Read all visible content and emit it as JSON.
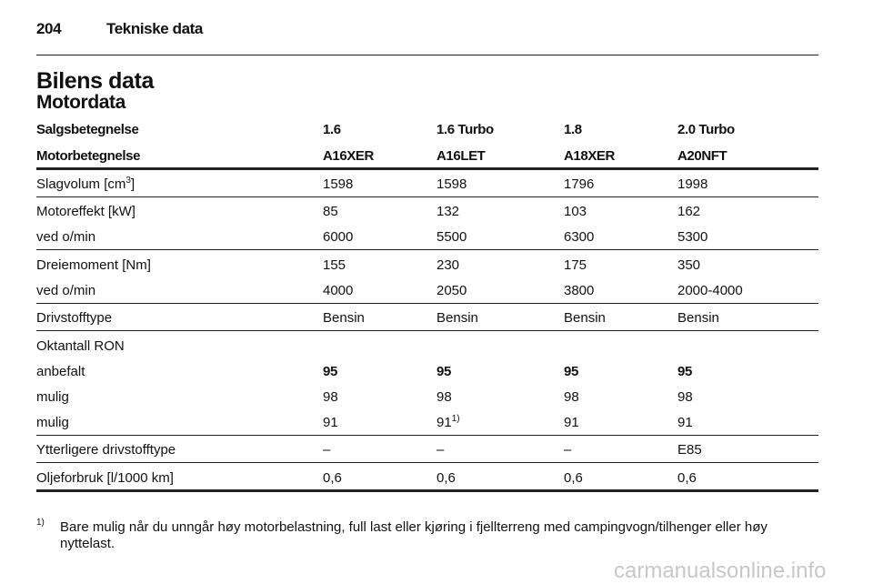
{
  "header": {
    "page_number": "204",
    "section": "Tekniske data"
  },
  "title": "Bilens data",
  "subtitle": "Motordata",
  "table": {
    "header_rows": [
      [
        "Salgsbetegnelse",
        "1.6",
        "1.6 Turbo",
        "1.8",
        "2.0 Turbo"
      ],
      [
        "Motorbetegnelse",
        "A16XER",
        "A16LET",
        "A18XER",
        "A20NFT"
      ]
    ],
    "groups": [
      {
        "rows": [
          [
            {
              "text": "Slagvolum [cm",
              "sup": "3",
              "after": "]"
            },
            "1598",
            "1598",
            "1796",
            "1998"
          ]
        ]
      },
      {
        "rows": [
          [
            "Motoreffekt [kW]",
            "85",
            "132",
            "103",
            "162"
          ],
          [
            "ved o/min",
            "6000",
            "5500",
            "6300",
            "5300"
          ]
        ]
      },
      {
        "rows": [
          [
            "Dreiemoment [Nm]",
            "155",
            "230",
            "175",
            "350"
          ],
          [
            "ved o/min",
            "4000",
            "2050",
            "3800",
            "2000-4000"
          ]
        ]
      },
      {
        "rows": [
          [
            "Drivstofftype",
            "Bensin",
            "Bensin",
            "Bensin",
            "Bensin"
          ]
        ]
      },
      {
        "rows": [
          [
            "Oktantall RON"
          ],
          [
            "anbefalt",
            {
              "text": "95",
              "bold": true
            },
            {
              "text": "95",
              "bold": true
            },
            {
              "text": "95",
              "bold": true
            },
            {
              "text": "95",
              "bold": true
            }
          ],
          [
            "mulig",
            "98",
            "98",
            "98",
            "98"
          ],
          [
            "mulig",
            "91",
            {
              "text": "91",
              "sup": "1)"
            },
            "91",
            "91"
          ]
        ]
      },
      {
        "rows": [
          [
            "Ytterligere drivstofftype",
            "–",
            "–",
            "–",
            "E85"
          ]
        ]
      },
      {
        "rows": [
          [
            "Oljeforbruk [l/1000 km]",
            "0,6",
            "0,6",
            "0,6",
            "0,6"
          ]
        ]
      }
    ]
  },
  "footnote": {
    "mark": "1)",
    "text": "Bare mulig når du unngår høy motorbelastning, full last eller kjøring i fjellterreng med campingvogn/tilhenger eller høy nyttelast."
  },
  "watermark": "carmanualsonline.info"
}
